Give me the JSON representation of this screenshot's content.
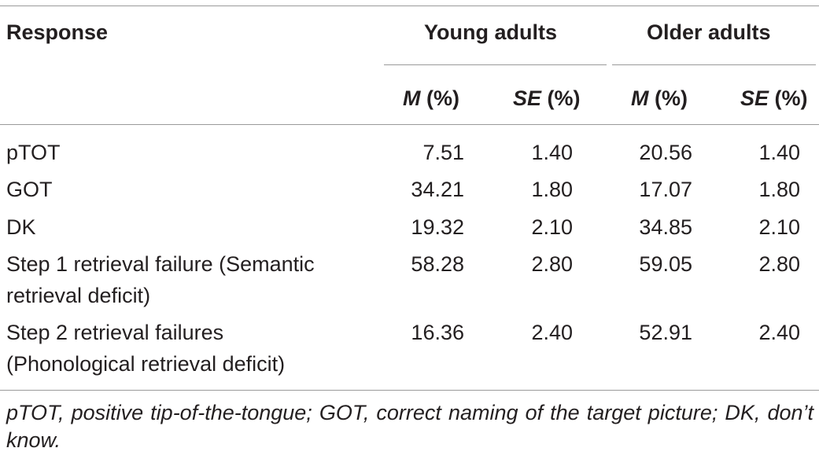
{
  "table": {
    "header": {
      "response": "Response",
      "group_young": "Young adults",
      "group_older": "Older adults",
      "m_label": "M",
      "m_unit": " (%)",
      "se_label": "SE",
      "se_unit": " (%)"
    },
    "rows": [
      {
        "label_lines": [
          "pTOT"
        ],
        "young_m": "7.51",
        "young_se": "1.40",
        "older_m": "20.56",
        "older_se": "1.40"
      },
      {
        "label_lines": [
          "GOT"
        ],
        "young_m": "34.21",
        "young_se": "1.80",
        "older_m": "17.07",
        "older_se": "1.80"
      },
      {
        "label_lines": [
          "DK"
        ],
        "young_m": "19.32",
        "young_se": "2.10",
        "older_m": "34.85",
        "older_se": "2.10"
      },
      {
        "label_lines": [
          "Step 1 retrieval failure (Semantic",
          "retrieval deficit)"
        ],
        "young_m": "58.28",
        "young_se": "2.80",
        "older_m": "59.05",
        "older_se": "2.80"
      },
      {
        "label_lines": [
          "Step 2 retrieval failures",
          "(Phonological retrieval deficit)"
        ],
        "young_m": "16.36",
        "young_se": "2.40",
        "older_m": "52.91",
        "older_se": "2.40"
      }
    ],
    "footnote": "pTOT, positive tip-of-the-tongue; GOT, correct naming of the target picture; DK, don’t know."
  }
}
